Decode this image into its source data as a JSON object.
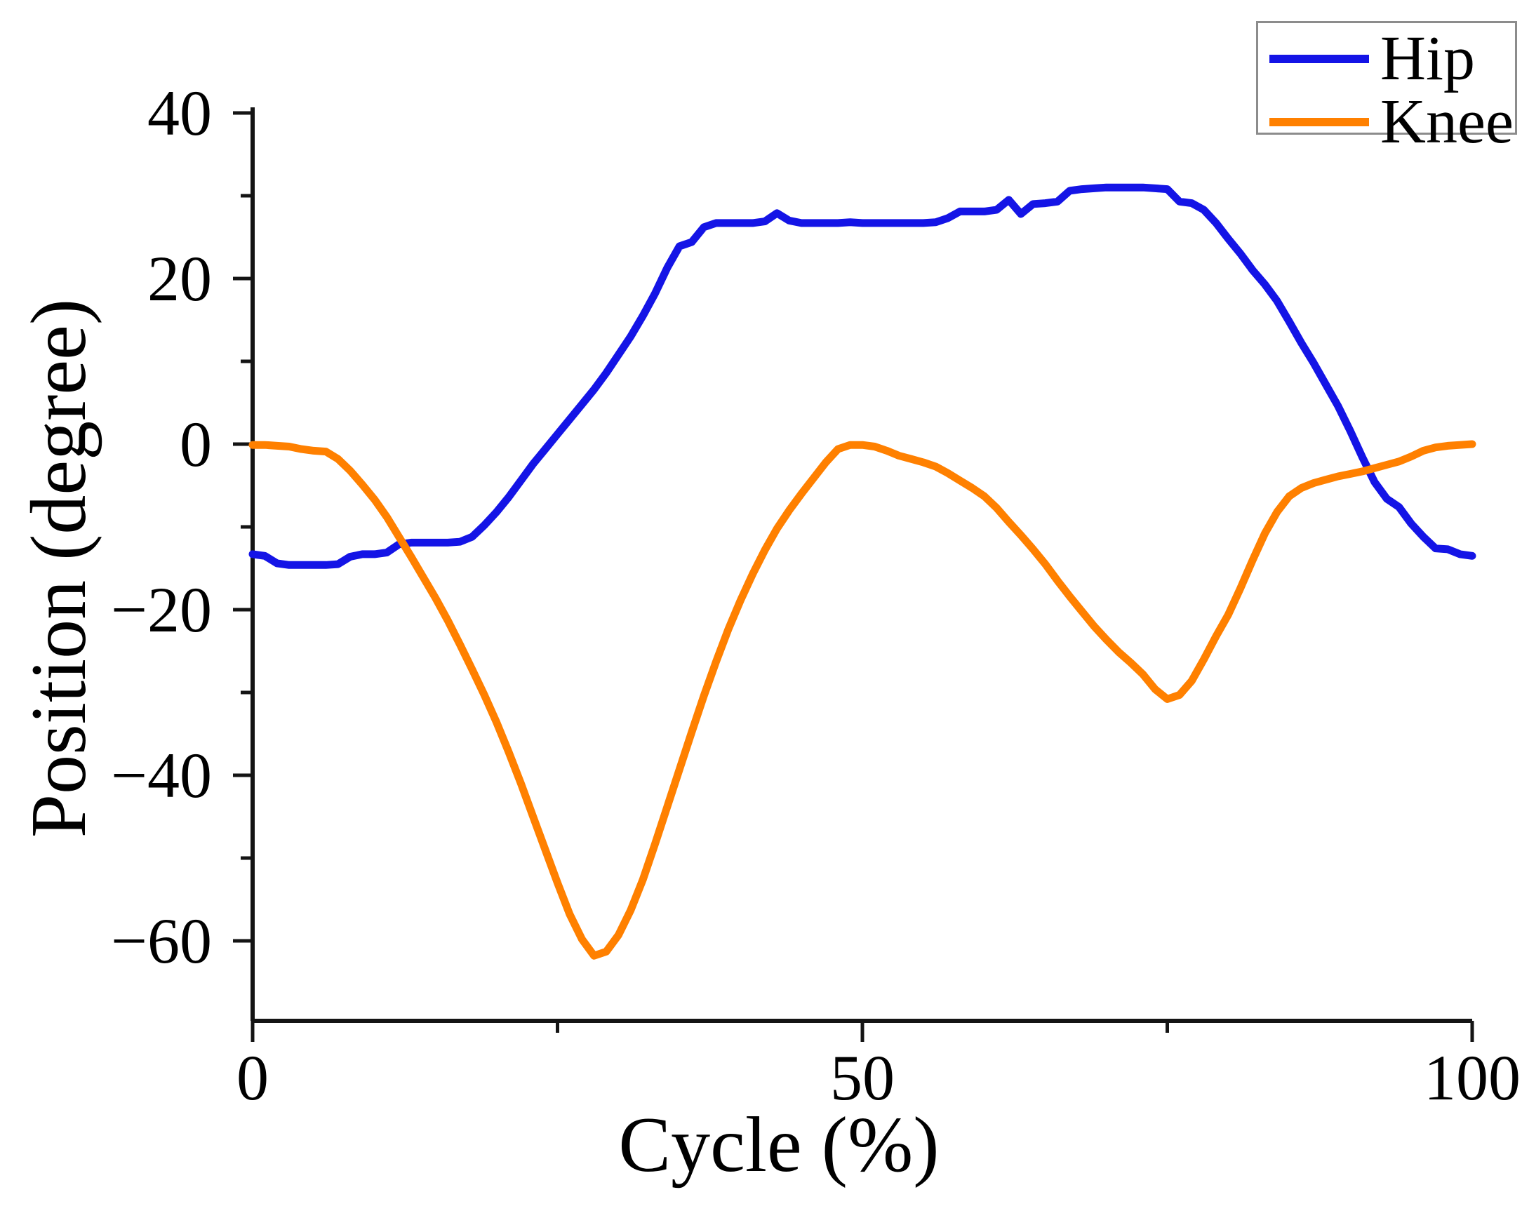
{
  "chart_data": {
    "type": "line",
    "title": "",
    "xlabel": "Cycle (%)",
    "ylabel": "Position (degree)",
    "xlim": [
      0,
      100
    ],
    "ylim": [
      -70,
      40
    ],
    "grid": false,
    "legend_position": "top-right",
    "x_major_ticks": [
      0,
      50,
      100
    ],
    "x_minor_ticks": [
      25,
      75
    ],
    "y_major_ticks": [
      40,
      20,
      0,
      -20,
      -40,
      -60
    ],
    "y_minor_ticks": [
      30,
      10,
      -10,
      -30,
      -50
    ],
    "x_tick_labels": [
      "0",
      "50",
      "100"
    ],
    "y_tick_labels": [
      "40",
      "20",
      "0",
      "−20",
      "−40",
      "−60"
    ],
    "axis_color": "#141414",
    "x_step": 1,
    "series": [
      {
        "name": "Hip",
        "color": "#1414e6",
        "values": [
          -13.3,
          -13.5,
          -14.4,
          -14.6,
          -14.6,
          -14.6,
          -14.6,
          -14.5,
          -13.6,
          -13.3,
          -13.3,
          -13.1,
          -12.1,
          -11.9,
          -11.9,
          -11.9,
          -11.9,
          -11.8,
          -11.2,
          -9.8,
          -8.2,
          -6.4,
          -4.4,
          -2.4,
          -0.6,
          1.2,
          3.0,
          4.8,
          6.6,
          8.6,
          10.8,
          13.0,
          15.5,
          18.2,
          21.3,
          23.9,
          24.4,
          26.2,
          26.7,
          26.7,
          26.7,
          26.7,
          26.9,
          27.9,
          27.0,
          26.7,
          26.7,
          26.7,
          26.7,
          26.8,
          26.7,
          26.7,
          26.7,
          26.7,
          26.7,
          26.7,
          26.8,
          27.3,
          28.1,
          28.1,
          28.1,
          28.3,
          29.5,
          27.8,
          29.0,
          29.1,
          29.3,
          30.6,
          30.8,
          30.9,
          31.0,
          31.0,
          31.0,
          31.0,
          30.9,
          30.8,
          29.3,
          29.1,
          28.3,
          26.7,
          24.8,
          23.0,
          21.0,
          19.3,
          17.3,
          14.8,
          12.2,
          9.8,
          7.2,
          4.6,
          1.6,
          -1.6,
          -4.6,
          -6.6,
          -7.6,
          -9.6,
          -11.2,
          -12.6,
          -12.7,
          -13.3,
          -13.5
        ]
      },
      {
        "name": "Knee",
        "color": "#ff8000",
        "values": [
          -0.1,
          -0.1,
          -0.2,
          -0.3,
          -0.6,
          -0.8,
          -0.9,
          -1.8,
          -3.2,
          -4.9,
          -6.7,
          -8.8,
          -11.2,
          -13.6,
          -16.1,
          -18.6,
          -21.3,
          -24.2,
          -27.2,
          -30.3,
          -33.6,
          -37.2,
          -41.0,
          -45.0,
          -49.0,
          -53.0,
          -56.8,
          -59.8,
          -61.8,
          -61.3,
          -59.3,
          -56.3,
          -52.6,
          -48.3,
          -43.8,
          -39.3,
          -34.8,
          -30.4,
          -26.3,
          -22.4,
          -18.9,
          -15.7,
          -12.8,
          -10.2,
          -8.0,
          -6.0,
          -4.1,
          -2.2,
          -0.6,
          -0.1,
          -0.1,
          -0.3,
          -0.8,
          -1.4,
          -1.8,
          -2.2,
          -2.7,
          -3.5,
          -4.4,
          -5.3,
          -6.3,
          -7.7,
          -9.4,
          -11.0,
          -12.7,
          -14.5,
          -16.5,
          -18.4,
          -20.2,
          -22.0,
          -23.6,
          -25.1,
          -26.4,
          -27.8,
          -29.6,
          -30.8,
          -30.3,
          -28.6,
          -26.0,
          -23.2,
          -20.6,
          -17.4,
          -14.0,
          -10.8,
          -8.2,
          -6.3,
          -5.3,
          -4.7,
          -4.3,
          -3.9,
          -3.6,
          -3.3,
          -2.9,
          -2.5,
          -2.1,
          -1.5,
          -0.8,
          -0.4,
          -0.2,
          -0.1,
          0.0
        ]
      }
    ]
  },
  "legend": {
    "border_color": "#8c8c8c",
    "items": [
      {
        "label": "Hip",
        "color": "#1414e6"
      },
      {
        "label": "Knee",
        "color": "#ff8000"
      }
    ]
  }
}
